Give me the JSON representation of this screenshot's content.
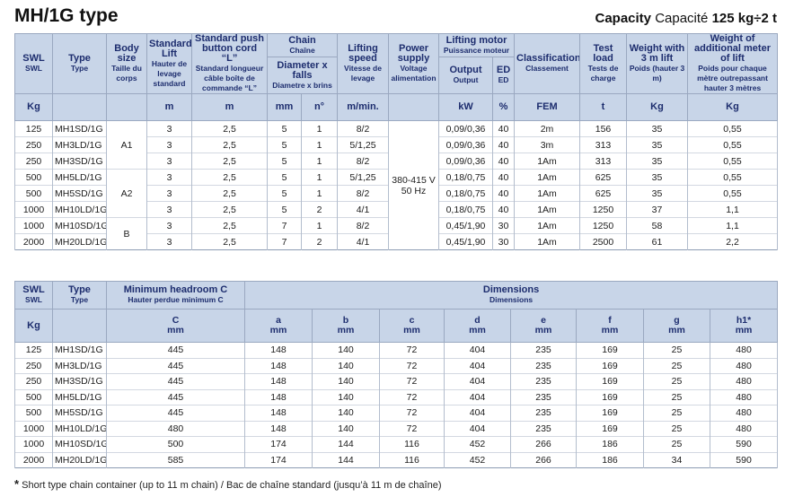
{
  "header": {
    "title": "MH/1G type",
    "capacity_label": "Capacity",
    "capacity_label_fr": "Capacité",
    "capacity_value": "125 kg÷2 t"
  },
  "table1": {
    "headers": {
      "swl": {
        "en": "SWL",
        "fr": "SWL"
      },
      "type": {
        "en": "Type",
        "fr": "Type"
      },
      "body": {
        "en": "Body size",
        "fr": "Taille du corps"
      },
      "lift": {
        "en": "Standard Lift",
        "fr": "Hauter de levage standard"
      },
      "cord": {
        "en": "Standard push button cord “L”",
        "fr": "Standard longueur câble boîte de commande “L”"
      },
      "chain": {
        "en": "Chain",
        "fr": "Chaîne"
      },
      "diameter": {
        "en": "Diameter x falls",
        "fr": "Diametre x brins"
      },
      "speed": {
        "en": "Lifting speed",
        "fr": "Vitesse de levage"
      },
      "power": {
        "en": "Power supply",
        "fr": "Voltage alimentation"
      },
      "motor": {
        "en": "Lifting motor",
        "fr": "Puissance moteur"
      },
      "output": {
        "en": "Output",
        "fr": "Output"
      },
      "ed": {
        "en": "ED",
        "fr": "ED"
      },
      "class": {
        "en": "Classification",
        "fr": "Classement"
      },
      "test": {
        "en": "Test load",
        "fr": "Tests de charge"
      },
      "weight": {
        "en": "Weight with 3 m lift",
        "fr": "Poids (hauter 3 m)"
      },
      "add": {
        "en": "Weight of additional meter of lift",
        "fr": "Poids pour chaque mètre outrepassant hauter 3 mètres"
      }
    },
    "units": {
      "swl": "Kg",
      "lift": "m",
      "cord": "m",
      "diam": "mm",
      "falls": "n°",
      "speed": "m/min.",
      "output": "kW",
      "ed": "%",
      "class": "FEM",
      "test": "t",
      "weight": "Kg",
      "add": "Kg"
    },
    "body_groups": [
      "A1",
      "A2",
      "B"
    ],
    "power": {
      "voltage": "380-415 V",
      "frequency": "50 Hz"
    },
    "rows": [
      [
        "125",
        "MH1SD/1G",
        "3",
        "2,5",
        "5",
        "1",
        "8/2",
        "0,09/0,36",
        "40",
        "2m",
        "156",
        "35",
        "0,55"
      ],
      [
        "250",
        "MH3LD/1G",
        "3",
        "2,5",
        "5",
        "1",
        "5/1,25",
        "0,09/0,36",
        "40",
        "3m",
        "313",
        "35",
        "0,55"
      ],
      [
        "250",
        "MH3SD/1G",
        "3",
        "2,5",
        "5",
        "1",
        "8/2",
        "0,09/0,36",
        "40",
        "1Am",
        "313",
        "35",
        "0,55"
      ],
      [
        "500",
        "MH5LD/1G",
        "3",
        "2,5",
        "5",
        "1",
        "5/1,25",
        "0,18/0,75",
        "40",
        "1Am",
        "625",
        "35",
        "0,55"
      ],
      [
        "500",
        "MH5SD/1G",
        "3",
        "2,5",
        "5",
        "1",
        "8/2",
        "0,18/0,75",
        "40",
        "1Am",
        "625",
        "35",
        "0,55"
      ],
      [
        "1000",
        "MH10LD/1G",
        "3",
        "2,5",
        "5",
        "2",
        "4/1",
        "0,18/0,75",
        "40",
        "1Am",
        "1250",
        "37",
        "1,1"
      ],
      [
        "1000",
        "MH10SD/1G",
        "3",
        "2,5",
        "7",
        "1",
        "8/2",
        "0,45/1,90",
        "30",
        "1Am",
        "1250",
        "58",
        "1,1"
      ],
      [
        "2000",
        "MH20LD/1G",
        "3",
        "2,5",
        "7",
        "2",
        "4/1",
        "0,45/1,90",
        "30",
        "1Am",
        "2500",
        "61",
        "2,2"
      ]
    ]
  },
  "table2": {
    "headers": {
      "swl": {
        "en": "SWL",
        "fr": "SWL"
      },
      "type": {
        "en": "Type",
        "fr": "Type"
      },
      "headroom": {
        "en": "Minimum headroom C",
        "fr": "Hauter perdue minimum C"
      },
      "dimensions": {
        "en": "Dimensions",
        "fr": "Dimensions"
      }
    },
    "swl_unit": "Kg",
    "columns": [
      {
        "label": "C",
        "unit": "mm"
      },
      {
        "label": "a",
        "unit": "mm"
      },
      {
        "label": "b",
        "unit": "mm"
      },
      {
        "label": "c",
        "unit": "mm"
      },
      {
        "label": "d",
        "unit": "mm"
      },
      {
        "label": "e",
        "unit": "mm"
      },
      {
        "label": "f",
        "unit": "mm"
      },
      {
        "label": "g",
        "unit": "mm"
      },
      {
        "label": "h1*",
        "unit": "mm"
      }
    ],
    "rows": [
      [
        "125",
        "MH1SD/1G",
        "445",
        "148",
        "140",
        "72",
        "404",
        "235",
        "169",
        "25",
        "480"
      ],
      [
        "250",
        "MH3LD/1G",
        "445",
        "148",
        "140",
        "72",
        "404",
        "235",
        "169",
        "25",
        "480"
      ],
      [
        "250",
        "MH3SD/1G",
        "445",
        "148",
        "140",
        "72",
        "404",
        "235",
        "169",
        "25",
        "480"
      ],
      [
        "500",
        "MH5LD/1G",
        "445",
        "148",
        "140",
        "72",
        "404",
        "235",
        "169",
        "25",
        "480"
      ],
      [
        "500",
        "MH5SD/1G",
        "445",
        "148",
        "140",
        "72",
        "404",
        "235",
        "169",
        "25",
        "480"
      ],
      [
        "1000",
        "MH10LD/1G",
        "480",
        "148",
        "140",
        "72",
        "404",
        "235",
        "169",
        "25",
        "480"
      ],
      [
        "1000",
        "MH10SD/1G",
        "500",
        "174",
        "144",
        "116",
        "452",
        "266",
        "186",
        "25",
        "590"
      ],
      [
        "2000",
        "MH20LD/1G",
        "585",
        "174",
        "144",
        "116",
        "452",
        "266",
        "186",
        "34",
        "590"
      ]
    ]
  },
  "footnote": {
    "mark": "*",
    "text": "Short type chain container (up to 11 m chain) / Bac de chaîne standard (jusqu’à 11 m de chaîne)"
  }
}
